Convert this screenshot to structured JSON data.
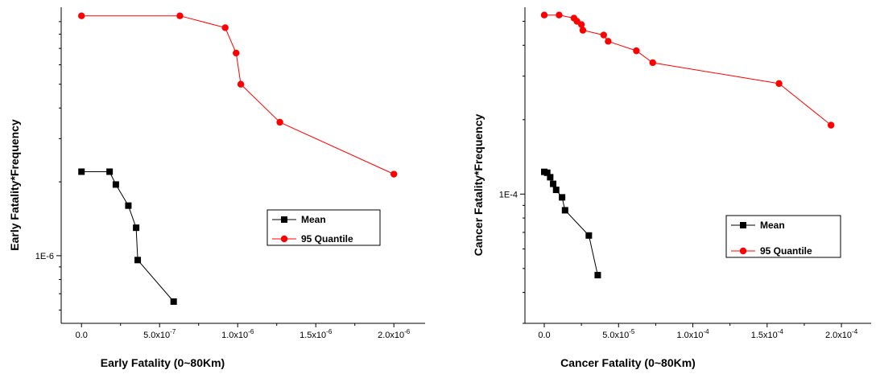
{
  "colors": {
    "mean": "#000000",
    "quantile": "#ff0000"
  },
  "chart_data": [
    {
      "type": "line",
      "xlabel": "Early Fatality (0~80Km)",
      "ylabel": "Early Fatality*Frequency",
      "yscale": "log",
      "xlim": [
        -1.3e-07,
        2.2e-06
      ],
      "ylim": [
        5.3e-07,
        1.03e-05
      ],
      "x_ticks": [
        {
          "value": 0,
          "text": "0.0"
        },
        {
          "value": 5e-07,
          "text": "5.0x10",
          "sup": "-7"
        },
        {
          "value": 1e-06,
          "text": "1.0x10",
          "sup": "-6"
        },
        {
          "value": 1.5e-06,
          "text": "1.5x10",
          "sup": "-6"
        },
        {
          "value": 2e-06,
          "text": "2.0x10",
          "sup": "-6"
        }
      ],
      "x_minor": [
        2.5e-07,
        7.5e-07,
        1.25e-06,
        1.75e-06
      ],
      "y_ticks": [
        {
          "value": 1e-06,
          "text": "1E-6"
        }
      ],
      "legend": {
        "position": "center-right",
        "entries": [
          "Mean",
          "95 Quantile"
        ]
      },
      "series": [
        {
          "name": "Mean",
          "marker": "square",
          "x": [
            0,
            1.8e-07,
            2.2e-07,
            3e-07,
            3.5e-07,
            3.6e-07,
            5.9e-07
          ],
          "y": [
            2.2e-06,
            2.2e-06,
            1.95e-06,
            1.6e-06,
            1.3e-06,
            9.6e-07,
            6.5e-07
          ]
        },
        {
          "name": "95 Quantile",
          "marker": "circle",
          "x": [
            0,
            6.3e-07,
            9.2e-07,
            9.9e-07,
            1.02e-06,
            1.27e-06,
            2e-06
          ],
          "y": [
            9.5e-06,
            9.5e-06,
            8.5e-06,
            6.7e-06,
            5e-06,
            3.5e-06,
            2.15e-06
          ]
        }
      ]
    },
    {
      "type": "line",
      "xlabel": "Cancer Fatality (0~80Km)",
      "ylabel": "Cancer Fatality*Frequency",
      "yscale": "log",
      "xlim": [
        -1.3e-05,
        0.00022
      ],
      "ylim": [
        3e-05,
        0.00057
      ],
      "x_ticks": [
        {
          "value": 0,
          "text": "0.0"
        },
        {
          "value": 5e-05,
          "text": "5.0x10",
          "sup": "-5"
        },
        {
          "value": 0.0001,
          "text": "1.0x10",
          "sup": "-4"
        },
        {
          "value": 0.00015,
          "text": "1.5x10",
          "sup": "-4"
        },
        {
          "value": 0.0002,
          "text": "2.0x10",
          "sup": "-4"
        }
      ],
      "x_minor": [
        2.5e-05,
        7.5e-05,
        0.000125,
        0.000175
      ],
      "y_ticks": [
        {
          "value": 0.0001,
          "text": "1E-4"
        }
      ],
      "legend": {
        "position": "bottom-right",
        "entries": [
          "Mean",
          "95 Quantile"
        ]
      },
      "series": [
        {
          "name": "Mean",
          "marker": "square",
          "x": [
            0,
            2e-06,
            4e-06,
            6e-06,
            8e-06,
            1.2e-05,
            1.4e-05,
            3e-05,
            3.6e-05
          ],
          "y": [
            0.000123,
            0.000122,
            0.000117,
            0.00011,
            0.000104,
            9.7e-05,
            8.6e-05,
            6.8e-05,
            4.7e-05
          ]
        },
        {
          "name": "95 Quantile",
          "marker": "circle",
          "x": [
            0,
            1e-05,
            2e-05,
            2.2e-05,
            2.5e-05,
            2.6e-05,
            4e-05,
            4.3e-05,
            6.2e-05,
            7.3e-05,
            0.000158,
            0.000193
          ],
          "y": [
            0.00053,
            0.00053,
            0.000515,
            0.0005,
            0.000485,
            0.00046,
            0.00044,
            0.000415,
            0.00038,
            0.00034,
            0.00028,
            0.00019
          ]
        }
      ]
    }
  ]
}
